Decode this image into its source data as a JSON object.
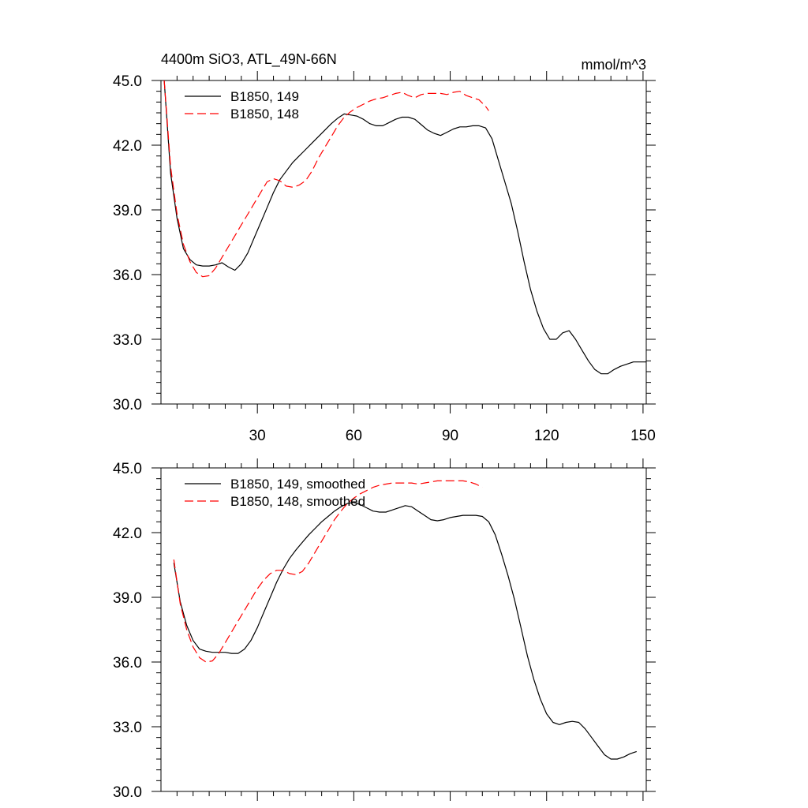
{
  "figure": {
    "title": "4400m SiO3, ATL_49N-66N",
    "units": "mmol/m^3"
  },
  "chart_data": [
    {
      "type": "line",
      "panel": "top",
      "title": "4400m SiO3, ATL_49N-66N",
      "units_label": "mmol/m^3",
      "xlim": [
        0,
        151
      ],
      "ylim": [
        30,
        45
      ],
      "x_ticks": [
        30,
        60,
        90,
        120,
        150
      ],
      "x_tick_labels": [
        "30",
        "60",
        "90",
        "120",
        "150"
      ],
      "y_ticks": [
        30,
        33,
        36,
        39,
        42,
        45
      ],
      "y_tick_labels": [
        "30.0",
        "33.0",
        "36.0",
        "39.0",
        "42.0",
        "45.0"
      ],
      "legend_position": "top-left",
      "series": [
        {
          "name": "B1850, 149",
          "color": "#000000",
          "dash": "solid",
          "x": [
            1,
            3,
            5,
            7,
            9,
            11,
            13,
            15,
            17,
            19,
            21,
            23,
            25,
            27,
            29,
            31,
            33,
            35,
            37,
            39,
            41,
            43,
            45,
            47,
            49,
            51,
            53,
            55,
            57,
            59,
            61,
            63,
            65,
            67,
            69,
            71,
            73,
            75,
            77,
            79,
            81,
            83,
            85,
            87,
            89,
            91,
            93,
            95,
            97,
            99,
            101,
            103,
            105,
            107,
            109,
            111,
            113,
            115,
            117,
            119,
            121,
            123,
            125,
            127,
            129,
            131,
            133,
            135,
            137,
            139,
            141,
            143,
            145,
            147,
            149,
            151
          ],
          "y": [
            45.0,
            40.7,
            38.6,
            37.2,
            36.7,
            36.45,
            36.4,
            36.4,
            36.45,
            36.55,
            36.35,
            36.2,
            36.5,
            37.0,
            37.7,
            38.4,
            39.1,
            39.8,
            40.4,
            40.8,
            41.2,
            41.5,
            41.8,
            42.1,
            42.4,
            42.7,
            43.0,
            43.25,
            43.45,
            43.4,
            43.35,
            43.2,
            43.0,
            42.9,
            42.9,
            43.05,
            43.2,
            43.3,
            43.3,
            43.2,
            42.95,
            42.7,
            42.55,
            42.45,
            42.6,
            42.75,
            42.85,
            42.85,
            42.9,
            42.9,
            42.8,
            42.3,
            41.3,
            40.3,
            39.3,
            38.0,
            36.6,
            35.3,
            34.3,
            33.5,
            33.0,
            33.0,
            33.3,
            33.4,
            33.0,
            32.5,
            32.0,
            31.6,
            31.4,
            31.4,
            31.6,
            31.75,
            31.85,
            31.95,
            31.95,
            31.95
          ]
        },
        {
          "name": "B1850, 148",
          "color": "#ff0000",
          "dash": "dashed",
          "x": [
            1,
            3,
            5,
            7,
            9,
            11,
            13,
            15,
            17,
            19,
            21,
            23,
            25,
            27,
            29,
            31,
            33,
            35,
            37,
            39,
            41,
            43,
            45,
            47,
            49,
            51,
            53,
            55,
            57,
            59,
            61,
            63,
            65,
            67,
            69,
            71,
            73,
            75,
            77,
            79,
            81,
            83,
            85,
            87,
            89,
            91,
            93,
            95,
            97,
            99,
            101,
            102
          ],
          "y": [
            45.0,
            41.0,
            38.8,
            37.4,
            36.6,
            36.1,
            35.9,
            35.95,
            36.3,
            36.8,
            37.3,
            37.8,
            38.3,
            38.8,
            39.3,
            39.8,
            40.3,
            40.45,
            40.35,
            40.1,
            40.05,
            40.15,
            40.35,
            40.8,
            41.4,
            41.9,
            42.4,
            42.9,
            43.3,
            43.55,
            43.75,
            43.9,
            44.05,
            44.15,
            44.2,
            44.3,
            44.4,
            44.45,
            44.3,
            44.2,
            44.35,
            44.4,
            44.4,
            44.4,
            44.35,
            44.45,
            44.5,
            44.3,
            44.2,
            44.1,
            43.8,
            43.6
          ]
        }
      ]
    },
    {
      "type": "line",
      "panel": "bottom",
      "xlim": [
        0,
        151
      ],
      "ylim": [
        30,
        45
      ],
      "x_ticks": [
        30,
        60,
        90,
        120,
        150
      ],
      "y_ticks": [
        30,
        33,
        36,
        39,
        42,
        45
      ],
      "y_tick_labels": [
        "30.0",
        "33.0",
        "36.0",
        "39.0",
        "42.0",
        "45.0"
      ],
      "legend_position": "top-left",
      "series": [
        {
          "name": "B1850, 149, smoothed",
          "color": "#000000",
          "dash": "solid",
          "x": [
            4,
            6,
            8,
            10,
            12,
            14,
            16,
            18,
            20,
            22,
            24,
            26,
            28,
            30,
            32,
            34,
            36,
            38,
            40,
            42,
            44,
            46,
            48,
            50,
            52,
            54,
            56,
            58,
            60,
            62,
            64,
            66,
            68,
            70,
            72,
            74,
            76,
            78,
            80,
            82,
            84,
            86,
            88,
            90,
            92,
            94,
            96,
            98,
            100,
            102,
            104,
            106,
            108,
            110,
            112,
            114,
            116,
            118,
            120,
            122,
            124,
            126,
            128,
            130,
            132,
            134,
            136,
            138,
            140,
            142,
            144,
            146,
            148
          ],
          "y": [
            40.6,
            38.8,
            37.7,
            37.0,
            36.6,
            36.5,
            36.45,
            36.45,
            36.45,
            36.4,
            36.4,
            36.6,
            37.0,
            37.6,
            38.3,
            39.0,
            39.7,
            40.3,
            40.8,
            41.2,
            41.55,
            41.9,
            42.2,
            42.5,
            42.75,
            43.0,
            43.2,
            43.35,
            43.4,
            43.3,
            43.15,
            43.0,
            42.95,
            42.95,
            43.05,
            43.15,
            43.25,
            43.2,
            43.0,
            42.8,
            42.6,
            42.55,
            42.6,
            42.7,
            42.75,
            42.8,
            42.8,
            42.8,
            42.75,
            42.5,
            41.9,
            41.0,
            40.0,
            38.9,
            37.6,
            36.3,
            35.2,
            34.3,
            33.6,
            33.2,
            33.1,
            33.2,
            33.25,
            33.2,
            32.9,
            32.5,
            32.1,
            31.7,
            31.5,
            31.5,
            31.6,
            31.75,
            31.85
          ]
        },
        {
          "name": "B1850, 148, smoothed",
          "color": "#ff0000",
          "dash": "dashed",
          "x": [
            4,
            6,
            8,
            10,
            12,
            14,
            16,
            18,
            20,
            22,
            24,
            26,
            28,
            30,
            32,
            34,
            36,
            38,
            40,
            42,
            44,
            46,
            48,
            50,
            52,
            54,
            56,
            58,
            60,
            62,
            64,
            66,
            68,
            70,
            72,
            74,
            76,
            78,
            80,
            82,
            84,
            86,
            88,
            90,
            92,
            94,
            96,
            98,
            100
          ],
          "y": [
            40.75,
            38.7,
            37.5,
            36.7,
            36.2,
            36.0,
            36.05,
            36.4,
            36.9,
            37.4,
            37.9,
            38.4,
            38.9,
            39.4,
            39.8,
            40.1,
            40.25,
            40.25,
            40.1,
            40.05,
            40.2,
            40.6,
            41.1,
            41.6,
            42.1,
            42.6,
            43.0,
            43.35,
            43.6,
            43.8,
            43.95,
            44.1,
            44.2,
            44.25,
            44.3,
            44.3,
            44.3,
            44.3,
            44.25,
            44.3,
            44.35,
            44.4,
            44.4,
            44.4,
            44.4,
            44.4,
            44.35,
            44.25,
            44.1
          ]
        }
      ]
    }
  ]
}
